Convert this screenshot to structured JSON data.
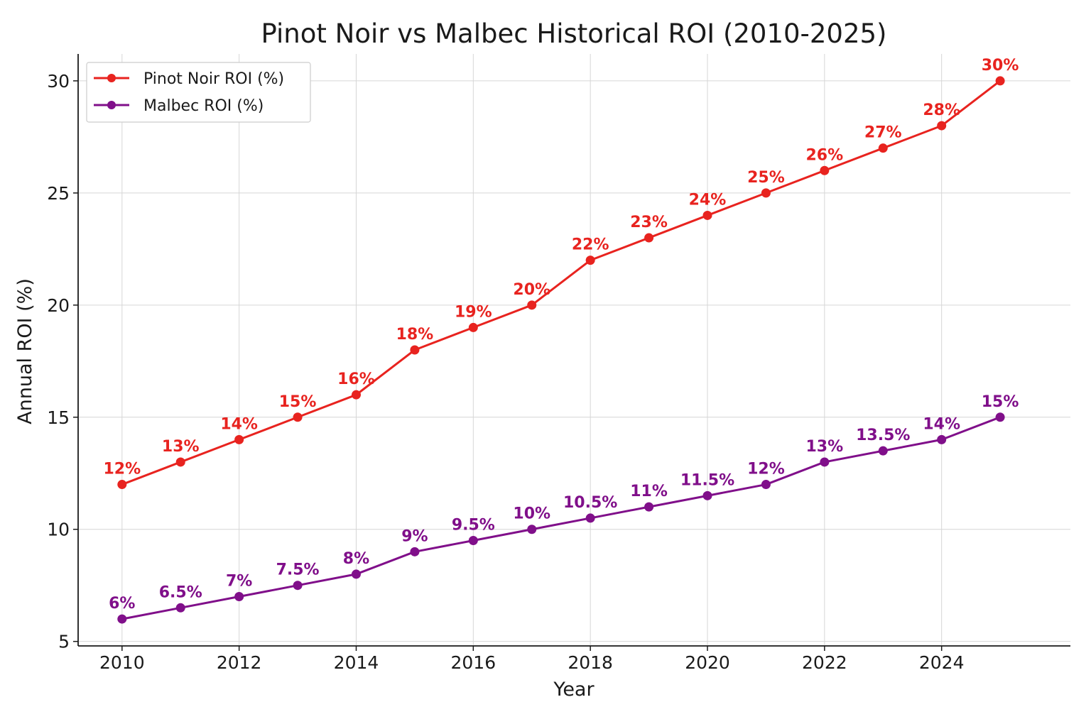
{
  "chart_data": {
    "type": "line",
    "title": "Pinot Noir vs Malbec Historical ROI (2010-2025)",
    "xlabel": "Year",
    "ylabel": "Annual ROI (%)",
    "x": [
      2010,
      2011,
      2012,
      2013,
      2014,
      2015,
      2016,
      2017,
      2018,
      2019,
      2020,
      2021,
      2022,
      2023,
      2024,
      2025
    ],
    "x_ticks": [
      2010,
      2012,
      2014,
      2016,
      2018,
      2020,
      2022,
      2024
    ],
    "x_tick_labels": [
      "2010",
      "2012",
      "2014",
      "2016",
      "2018",
      "2020",
      "2022",
      "2024"
    ],
    "y_ticks": [
      5,
      10,
      15,
      20,
      25,
      30
    ],
    "y_tick_labels": [
      "5",
      "10",
      "15",
      "20",
      "25",
      "30"
    ],
    "xlim": [
      2009.25,
      2026.2
    ],
    "ylim": [
      4.8,
      31.2
    ],
    "grid": true,
    "legend_position": "top-left",
    "series": [
      {
        "name": "Pinot Noir ROI (%)",
        "color": "#e8231f",
        "values": [
          12,
          13,
          14,
          15,
          16,
          18,
          19,
          20,
          22,
          23,
          24,
          25,
          26,
          27,
          28,
          30
        ],
        "labels": [
          "12%",
          "13%",
          "14%",
          "15%",
          "16%",
          "18%",
          "19%",
          "20%",
          "22%",
          "23%",
          "24%",
          "25%",
          "26%",
          "27%",
          "28%",
          "30%"
        ]
      },
      {
        "name": "Malbec ROI (%)",
        "color": "#800f8a",
        "values": [
          6,
          6.5,
          7,
          7.5,
          8,
          9,
          9.5,
          10,
          10.5,
          11,
          11.5,
          12,
          13,
          13.5,
          14,
          15
        ],
        "labels": [
          "6%",
          "6.5%",
          "7%",
          "7.5%",
          "8%",
          "9%",
          "9.5%",
          "10%",
          "10.5%",
          "11%",
          "11.5%",
          "12%",
          "13%",
          "13.5%",
          "14%",
          "15%"
        ]
      }
    ]
  }
}
